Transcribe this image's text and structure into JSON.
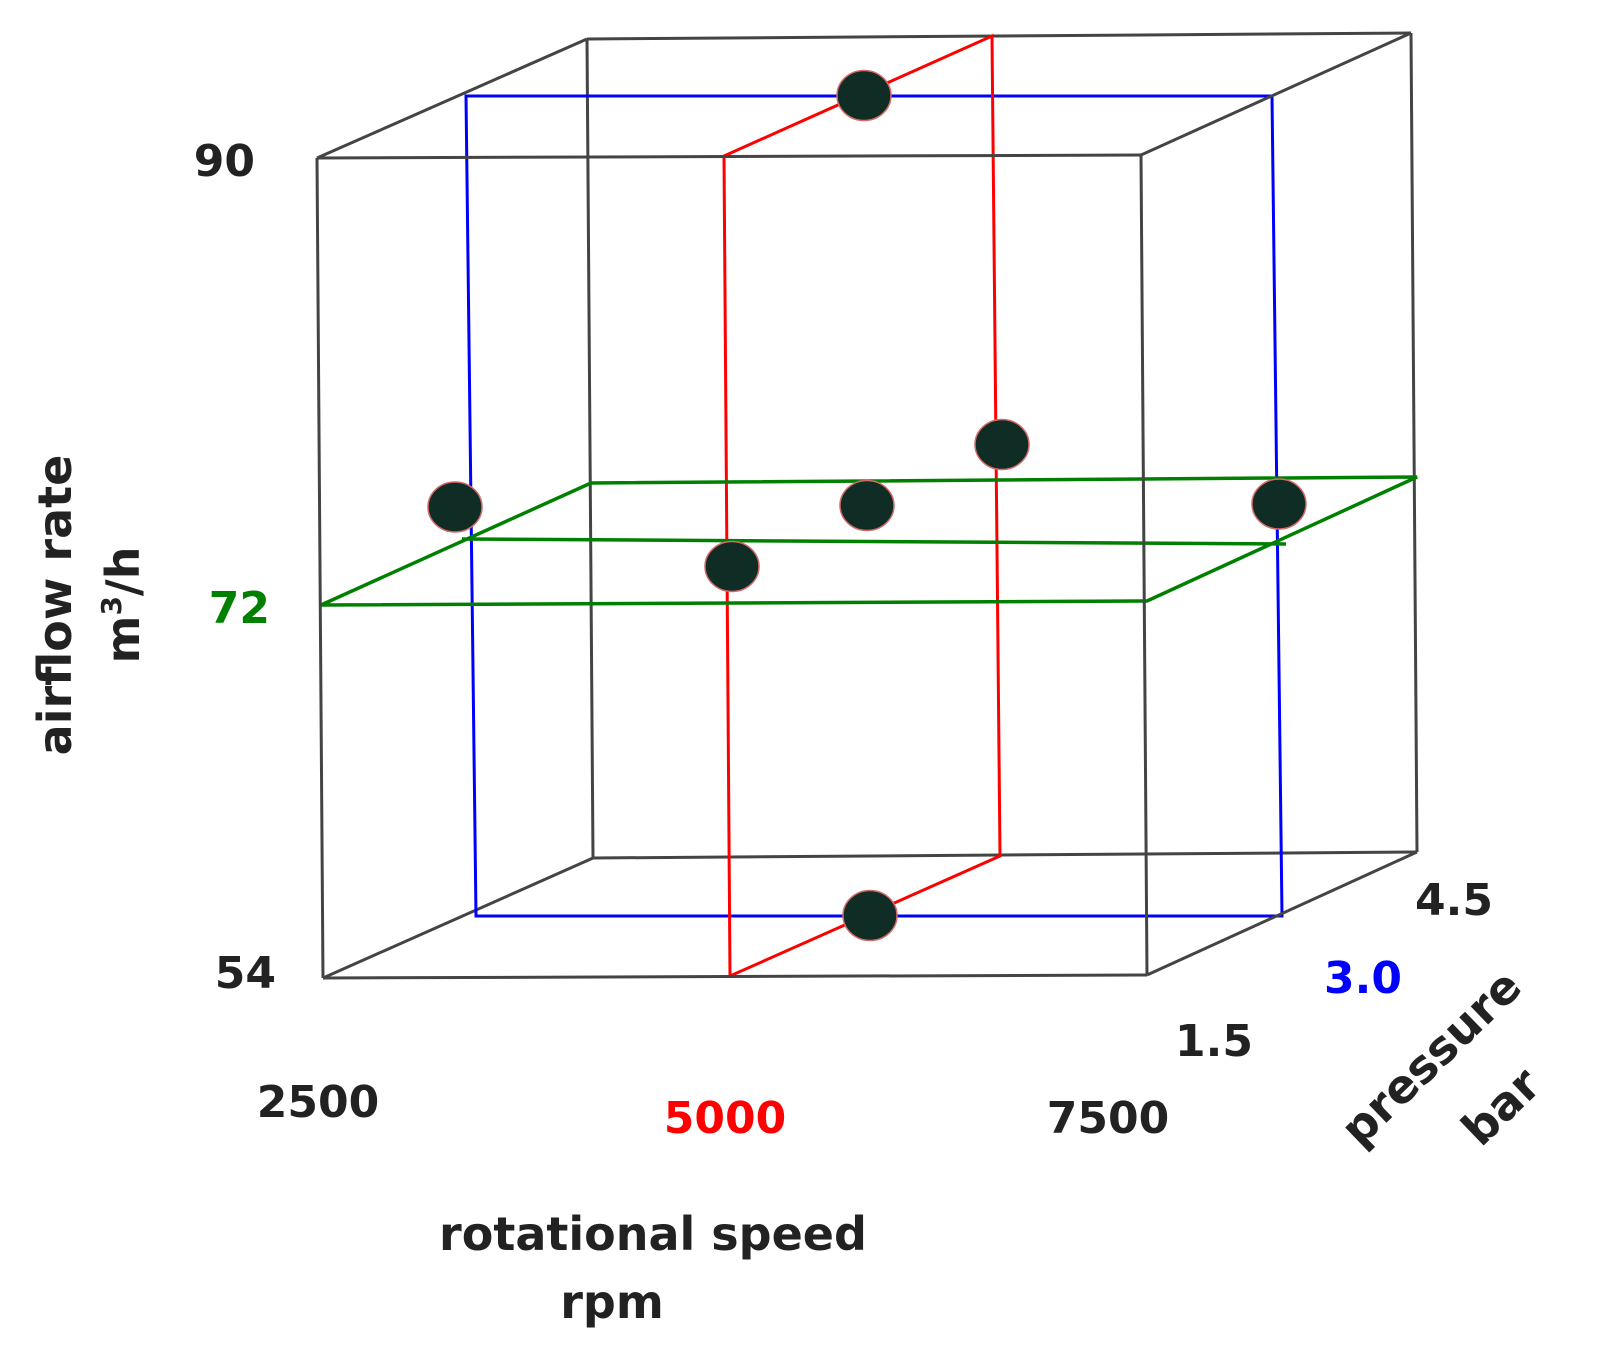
{
  "title_colors": {
    "frame": "#444444",
    "pressure_plane": "#0000ff",
    "speed_plane": "#ff0000",
    "airflow_plane": "#008000",
    "point": "#0f2d25"
  },
  "axes": {
    "airflow": {
      "title_line1": "airflow rate",
      "title_line2_base": "m",
      "title_line2_sup": "3",
      "title_line2_rest": "/h",
      "ticks": {
        "min": "54",
        "mid": "72",
        "max": "90"
      }
    },
    "speed": {
      "title_line1": "rotational speed",
      "title_line2": "rpm",
      "ticks": {
        "min": "2500",
        "mid": "5000",
        "max": "7500"
      }
    },
    "pressure": {
      "title_line1": "pressure",
      "title_line2": "bar",
      "ticks": {
        "min": "1.5",
        "mid": "3.0",
        "max": "4.5"
      }
    }
  },
  "design_points": [
    {
      "speed": 5000,
      "pressure": 3.0,
      "airflow": 90
    },
    {
      "speed": 5000,
      "pressure": 3.0,
      "airflow": 54
    },
    {
      "speed": 2500,
      "pressure": 3.0,
      "airflow": 72
    },
    {
      "speed": 7500,
      "pressure": 3.0,
      "airflow": 72
    },
    {
      "speed": 5000,
      "pressure": 1.5,
      "airflow": 72
    },
    {
      "speed": 5000,
      "pressure": 4.5,
      "airflow": 72
    },
    {
      "speed": 5000,
      "pressure": 3.0,
      "airflow": 72
    }
  ]
}
